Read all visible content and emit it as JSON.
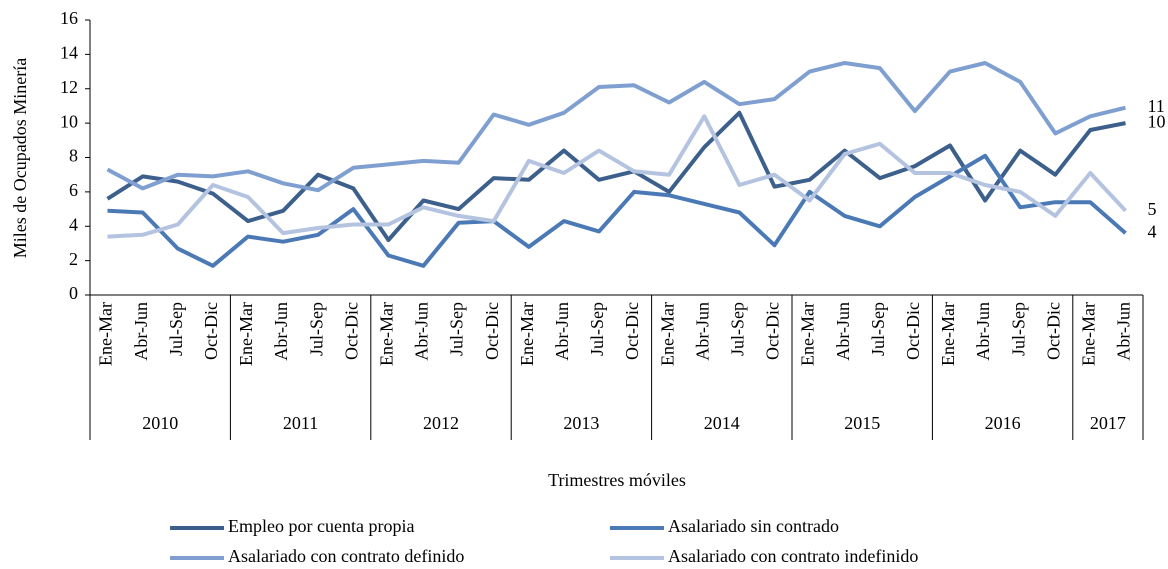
{
  "chart_data": {
    "type": "line",
    "y_axis_label": "Miles de Ocupados Minería",
    "x_axis_label": "Trimestres móviles",
    "categories": [
      "Ene-Mar",
      "Abr-Jun",
      "Jul-Sep",
      "Oct-Dic",
      "Ene-Mar",
      "Abr-Jun",
      "Jul-Sep",
      "Oct-Dic",
      "Ene-Mar",
      "Abr-Jun",
      "Jul-Sep",
      "Oct-Dic",
      "Ene-Mar",
      "Abr-Jun",
      "Jul-Sep",
      "Oct-Dic",
      "Ene-Mar",
      "Abr-Jun",
      "Jul-Sep",
      "Oct-Dic",
      "Ene-Mar",
      "Abr-Jun",
      "Jul-Sep",
      "Oct-Dic",
      "Ene-Mar",
      "Abr-Jun",
      "Jul-Sep",
      "Oct-Dic",
      "Ene-Mar",
      "Abr-Jun"
    ],
    "groups": [
      {
        "name": "2010",
        "size": 4
      },
      {
        "name": "2011",
        "size": 4
      },
      {
        "name": "2012",
        "size": 4
      },
      {
        "name": "2013",
        "size": 4
      },
      {
        "name": "2014",
        "size": 4
      },
      {
        "name": "2015",
        "size": 4
      },
      {
        "name": "2016",
        "size": 4
      },
      {
        "name": "2017",
        "size": 2
      }
    ],
    "ylim": [
      0,
      16
    ],
    "yticks": [
      0,
      2,
      4,
      6,
      8,
      10,
      12,
      14,
      16
    ],
    "series": [
      {
        "name": "Empleo por cuenta propia",
        "color": "#3c5f8c",
        "values": [
          5.6,
          6.9,
          6.6,
          5.9,
          4.3,
          4.9,
          7.0,
          6.2,
          3.2,
          5.5,
          5.0,
          6.8,
          6.7,
          8.4,
          6.7,
          7.2,
          6.0,
          8.6,
          10.6,
          6.3,
          6.7,
          8.4,
          6.8,
          7.5,
          8.7,
          5.5,
          8.4,
          7.0,
          9.6,
          10.0
        ],
        "value_labels": [
          null,
          null,
          null,
          null,
          null,
          null,
          null,
          null,
          null,
          null,
          null,
          null,
          null,
          null,
          null,
          null,
          null,
          null,
          null,
          null,
          null,
          null,
          null,
          null,
          null,
          null,
          null,
          null,
          null,
          "10"
        ]
      },
      {
        "name": "Asalariado sin contrado",
        "color": "#4b79b6",
        "values": [
          4.9,
          4.8,
          2.7,
          1.7,
          3.4,
          3.1,
          3.5,
          5.0,
          2.3,
          1.7,
          4.2,
          4.3,
          2.8,
          4.3,
          3.7,
          6.0,
          5.8,
          5.3,
          4.8,
          2.9,
          6.0,
          4.6,
          4.0,
          5.7,
          6.9,
          8.1,
          5.1,
          5.4,
          5.4,
          3.6
        ],
        "value_labels": [
          null,
          null,
          null,
          null,
          null,
          null,
          null,
          null,
          null,
          null,
          null,
          null,
          null,
          null,
          null,
          null,
          null,
          null,
          null,
          null,
          null,
          null,
          null,
          null,
          null,
          null,
          null,
          null,
          null,
          "4"
        ]
      },
      {
        "name": "Asalariado con contrato definido",
        "color": "#7f9fd1",
        "values": [
          7.3,
          6.2,
          7.0,
          6.9,
          7.2,
          6.5,
          6.1,
          7.4,
          7.6,
          7.8,
          7.7,
          10.5,
          9.9,
          10.6,
          12.1,
          12.2,
          11.2,
          12.4,
          11.1,
          11.4,
          13.0,
          13.5,
          13.2,
          10.7,
          13.0,
          13.5,
          12.4,
          9.4,
          10.4,
          10.9
        ],
        "value_labels": [
          null,
          null,
          null,
          null,
          null,
          null,
          null,
          null,
          null,
          null,
          null,
          null,
          null,
          null,
          null,
          null,
          null,
          null,
          null,
          null,
          null,
          null,
          null,
          null,
          null,
          null,
          null,
          null,
          null,
          "11"
        ]
      },
      {
        "name": "Asalariado con contrato indefinido",
        "color": "#b4c3df",
        "values": [
          3.4,
          3.5,
          4.1,
          6.4,
          5.7,
          3.6,
          3.9,
          4.1,
          4.1,
          5.1,
          4.6,
          4.3,
          7.8,
          7.1,
          8.4,
          7.2,
          7.0,
          10.4,
          6.4,
          7.0,
          5.5,
          8.2,
          8.8,
          7.1,
          7.1,
          6.4,
          6.0,
          4.6,
          7.1,
          4.9
        ],
        "value_labels": [
          null,
          null,
          null,
          null,
          null,
          null,
          null,
          null,
          null,
          null,
          null,
          null,
          null,
          null,
          null,
          null,
          null,
          null,
          null,
          null,
          null,
          null,
          null,
          null,
          null,
          null,
          null,
          null,
          null,
          "5"
        ]
      }
    ]
  }
}
